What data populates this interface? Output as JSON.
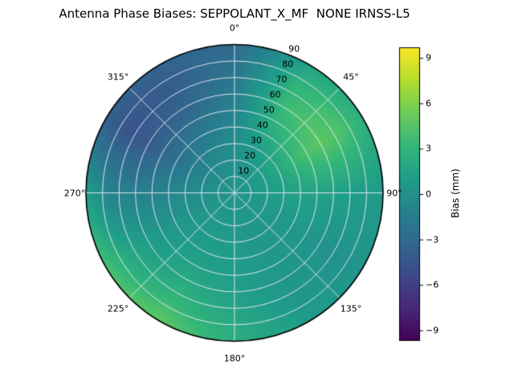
{
  "page": {
    "background": "#ffffff"
  },
  "chart_data": {
    "type": "heatmap",
    "projection": "polar",
    "title": "Antenna Phase Biases: SEPPOLANT_X_MF  NONE IRNSS-L5",
    "theta_direction": "clockwise",
    "theta_zero": "top",
    "theta_ticks": [
      {
        "angle_deg": 0,
        "label": "0°"
      },
      {
        "angle_deg": 45,
        "label": "45°"
      },
      {
        "angle_deg": 90,
        "label": "90°"
      },
      {
        "angle_deg": 135,
        "label": "135°"
      },
      {
        "angle_deg": 180,
        "label": "180°"
      },
      {
        "angle_deg": 225,
        "label": "225°"
      },
      {
        "angle_deg": 270,
        "label": "270°"
      },
      {
        "angle_deg": 315,
        "label": "315°"
      }
    ],
    "radial_axis": {
      "min": 0,
      "max": 90
    },
    "radial_label_angle_deg": 22.5,
    "radial_ticks": [
      {
        "value": 10,
        "label": "10"
      },
      {
        "value": 20,
        "label": "20"
      },
      {
        "value": 30,
        "label": "30"
      },
      {
        "value": 40,
        "label": "40"
      },
      {
        "value": 50,
        "label": "50"
      },
      {
        "value": 60,
        "label": "60"
      },
      {
        "value": 70,
        "label": "70"
      },
      {
        "value": 80,
        "label": "80"
      },
      {
        "value": 90,
        "label": "90"
      }
    ],
    "grid": {
      "azimuth_deg": [
        0,
        30,
        60,
        90,
        120,
        150,
        180,
        210,
        240,
        270,
        300,
        330
      ],
      "zenith_deg": [
        0,
        15,
        30,
        45,
        60,
        75,
        90
      ],
      "values_mm": [
        [
          0.3,
          0.1,
          -0.2,
          -0.8,
          -1.5,
          -2.2,
          -3.0
        ],
        [
          0.3,
          0.5,
          1.2,
          2.5,
          3.5,
          3.0,
          1.5
        ],
        [
          0.3,
          0.8,
          2.0,
          3.8,
          4.8,
          4.2,
          2.5
        ],
        [
          0.3,
          0.8,
          1.2,
          1.5,
          1.3,
          1.0,
          0.8
        ],
        [
          0.3,
          0.5,
          0.6,
          0.5,
          0.3,
          0.2,
          0.4
        ],
        [
          0.3,
          0.4,
          0.5,
          0.5,
          0.5,
          0.5,
          1.0
        ],
        [
          0.3,
          0.5,
          0.8,
          1.0,
          1.3,
          1.8,
          2.5
        ],
        [
          0.3,
          0.5,
          0.9,
          1.3,
          2.0,
          3.2,
          4.8
        ],
        [
          0.3,
          0.4,
          0.5,
          0.6,
          1.0,
          2.0,
          4.0
        ],
        [
          0.3,
          0.0,
          -0.5,
          -1.0,
          -1.3,
          -1.0,
          1.0
        ],
        [
          0.3,
          -0.3,
          -1.5,
          -3.0,
          -4.2,
          -4.6,
          -3.8
        ],
        [
          0.3,
          -0.2,
          -1.0,
          -2.2,
          -3.5,
          -4.0,
          -3.5
        ]
      ]
    },
    "colorbar": {
      "label": "Bias (mm)",
      "colormap": "viridis",
      "vmin": -9.7,
      "vmax": 9.7,
      "ticks": [
        9,
        6,
        3,
        0,
        -3,
        -6,
        -9
      ],
      "tick_labels": [
        "9",
        "6",
        "3",
        "0",
        "−3",
        "−6",
        "−9"
      ]
    }
  }
}
